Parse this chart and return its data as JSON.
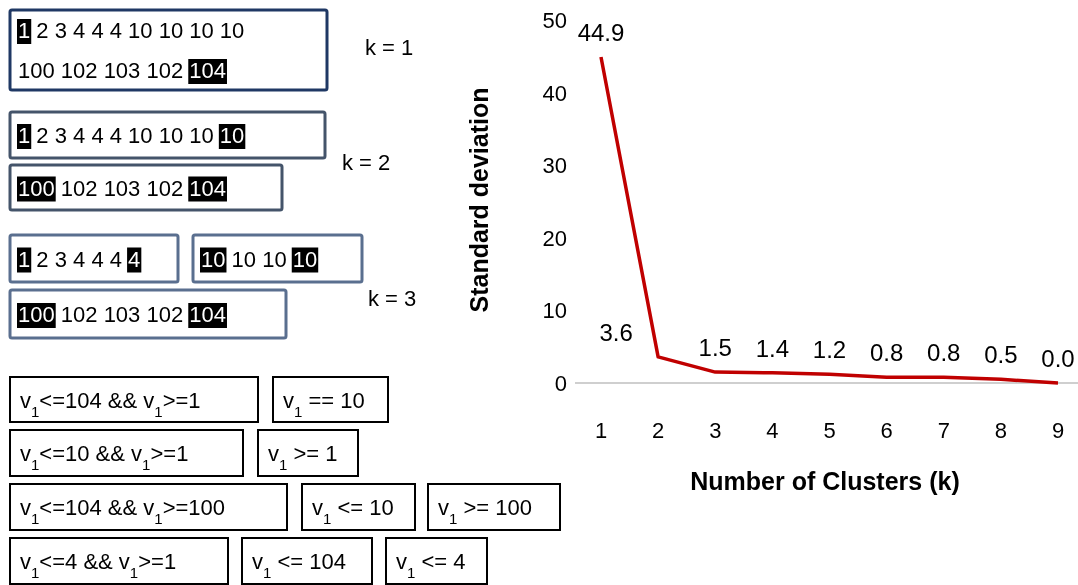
{
  "chart_data": [
    {
      "type": "other",
      "annotations": [
        "1 2 3 4 4 4 10 10 10 10 100 102 103 102 104",
        "k = 1",
        "1 2 3 4 4 4 10 10 10 10",
        "100 102 103 102 104",
        "k = 2",
        "1 2 3 4 4 4 4",
        "10 10 10 10",
        "100 102 103 102 104",
        "k = 3",
        "v$_{1}$<=104 && v$_{1}$>=1",
        "v$_{1}$ == 10",
        "v$_{1}$<=10 && v$_{1}$>=1",
        "v$_{1}$ >= 1",
        "v$_{1}$<=104 && v$_{1}$>=100",
        "v$_{1}$ <= 10",
        "v$_{1}$ >= 100",
        "v$_{1}$<=4 && v$_{1}$>=1",
        "v$_{1}$ <= 104",
        "v$_{1}$ <= 4"
      ]
    },
    {
      "type": "line",
      "xlabel": "Number of Clusters (k)",
      "ylabel": "Standard deviation",
      "categories": [
        "1",
        "2",
        "3",
        "4",
        "5",
        "6",
        "7",
        "8",
        "9"
      ],
      "color": "#c00000",
      "values": [
        44.9,
        3.6,
        1.5,
        1.4,
        1.2,
        0.8,
        0.8,
        0.5,
        0.0
      ],
      "ylim": [
        0,
        50
      ],
      "yticks": [
        0,
        10,
        20,
        30,
        40,
        50
      ],
      "value_labels": [
        "44.9",
        "3.6",
        "1.5",
        "1.4",
        "1.2",
        "0.8",
        "0.8",
        "0.5",
        "0.0"
      ],
      "grid": false
    }
  ]
}
